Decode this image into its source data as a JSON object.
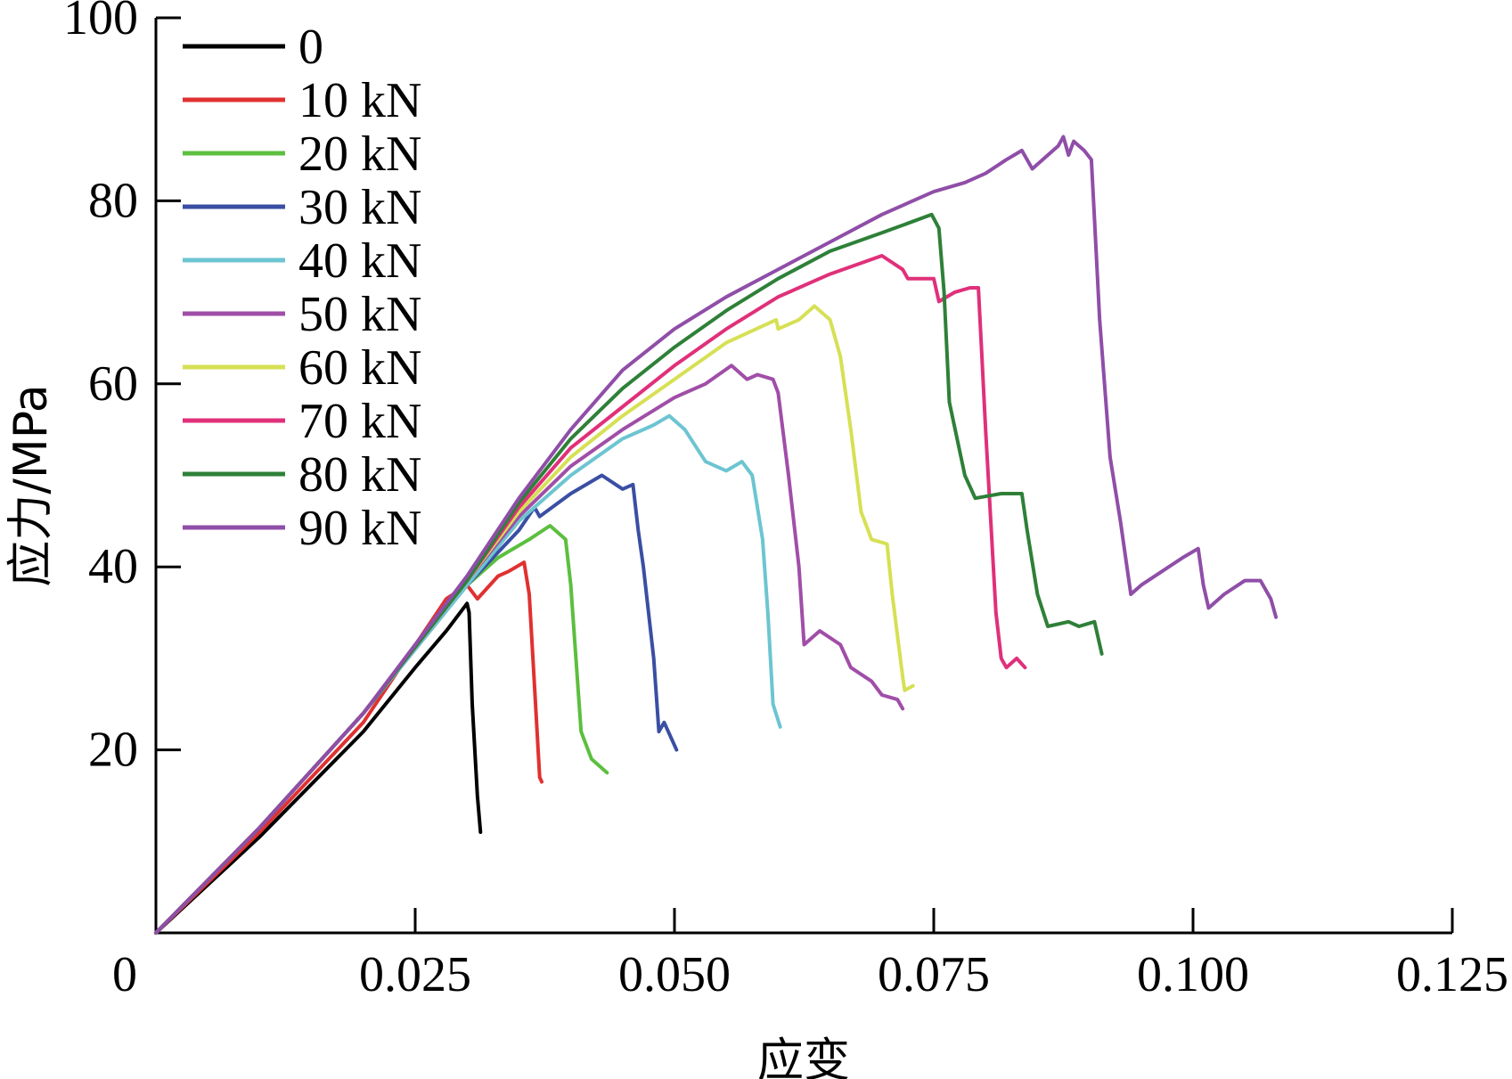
{
  "chart_data": {
    "type": "line",
    "xlabel": "应变",
    "ylabel": "应力/MPa",
    "xlim": [
      0,
      0.125
    ],
    "ylim": [
      0,
      100
    ],
    "xticks": [
      {
        "value": 0,
        "label": "0"
      },
      {
        "value": 0.025,
        "label": "0.025"
      },
      {
        "value": 0.05,
        "label": "0.050"
      },
      {
        "value": 0.075,
        "label": "0.075"
      },
      {
        "value": 0.1,
        "label": "0.100"
      },
      {
        "value": 0.125,
        "label": "0.125"
      }
    ],
    "yticks": [
      {
        "value": 20,
        "label": "20"
      },
      {
        "value": 40,
        "label": "40"
      },
      {
        "value": 60,
        "label": "60"
      },
      {
        "value": 80,
        "label": "80"
      },
      {
        "value": 100,
        "label": "100"
      }
    ],
    "legend_position": "top-left",
    "series": [
      {
        "name": "0",
        "color": "#000000",
        "points": [
          [
            0,
            0
          ],
          [
            0.01,
            10.5
          ],
          [
            0.02,
            22
          ],
          [
            0.025,
            29
          ],
          [
            0.028,
            33
          ],
          [
            0.03,
            36
          ],
          [
            0.0302,
            35
          ],
          [
            0.0305,
            25
          ],
          [
            0.031,
            15
          ],
          [
            0.0313,
            11
          ]
        ]
      },
      {
        "name": "10 kN",
        "color": "#e03131",
        "points": [
          [
            0,
            0
          ],
          [
            0.01,
            11
          ],
          [
            0.02,
            23
          ],
          [
            0.028,
            36.5
          ],
          [
            0.03,
            38
          ],
          [
            0.031,
            36.5
          ],
          [
            0.033,
            39
          ],
          [
            0.034,
            39.5
          ],
          [
            0.0355,
            40.5
          ],
          [
            0.036,
            37
          ],
          [
            0.0365,
            27
          ],
          [
            0.037,
            17
          ],
          [
            0.0372,
            16.5
          ]
        ]
      },
      {
        "name": "20 kN",
        "color": "#5cbf3f",
        "points": [
          [
            0,
            0
          ],
          [
            0.01,
            11.5
          ],
          [
            0.02,
            24
          ],
          [
            0.03,
            38
          ],
          [
            0.033,
            41
          ],
          [
            0.036,
            43
          ],
          [
            0.038,
            44.5
          ],
          [
            0.0395,
            43
          ],
          [
            0.04,
            38
          ],
          [
            0.0405,
            30
          ],
          [
            0.041,
            22
          ],
          [
            0.042,
            19
          ],
          [
            0.0435,
            17.5
          ]
        ]
      },
      {
        "name": "30 kN",
        "color": "#3a4fa3",
        "points": [
          [
            0,
            0
          ],
          [
            0.01,
            11.5
          ],
          [
            0.02,
            24
          ],
          [
            0.03,
            38
          ],
          [
            0.035,
            44
          ],
          [
            0.0365,
            46.5
          ],
          [
            0.037,
            45.5
          ],
          [
            0.04,
            48
          ],
          [
            0.043,
            50
          ],
          [
            0.045,
            48.5
          ],
          [
            0.046,
            49
          ],
          [
            0.0465,
            44
          ],
          [
            0.047,
            40
          ],
          [
            0.048,
            30
          ],
          [
            0.0485,
            22
          ],
          [
            0.049,
            23
          ],
          [
            0.0502,
            20
          ]
        ]
      },
      {
        "name": "40 kN",
        "color": "#6cc5d1",
        "points": [
          [
            0,
            0
          ],
          [
            0.01,
            11.5
          ],
          [
            0.02,
            24
          ],
          [
            0.03,
            38
          ],
          [
            0.035,
            45
          ],
          [
            0.04,
            50
          ],
          [
            0.045,
            54
          ],
          [
            0.048,
            55.5
          ],
          [
            0.0495,
            56.5
          ],
          [
            0.051,
            55
          ],
          [
            0.053,
            51.5
          ],
          [
            0.055,
            50.5
          ],
          [
            0.0565,
            51.5
          ],
          [
            0.0575,
            50
          ],
          [
            0.0585,
            43
          ],
          [
            0.059,
            35
          ],
          [
            0.0595,
            25
          ],
          [
            0.0602,
            22.5
          ]
        ]
      },
      {
        "name": "50 kN",
        "color": "#a04ea8",
        "points": [
          [
            0,
            0
          ],
          [
            0.01,
            11.5
          ],
          [
            0.02,
            24
          ],
          [
            0.03,
            38.5
          ],
          [
            0.035,
            45.5
          ],
          [
            0.04,
            51
          ],
          [
            0.045,
            55
          ],
          [
            0.05,
            58.5
          ],
          [
            0.053,
            60
          ],
          [
            0.0555,
            62
          ],
          [
            0.057,
            60.5
          ],
          [
            0.058,
            61
          ],
          [
            0.0595,
            60.5
          ],
          [
            0.06,
            59
          ],
          [
            0.061,
            50
          ],
          [
            0.062,
            40
          ],
          [
            0.0625,
            31.5
          ],
          [
            0.064,
            33
          ],
          [
            0.066,
            31.5
          ],
          [
            0.067,
            29
          ],
          [
            0.069,
            27.5
          ],
          [
            0.07,
            26
          ],
          [
            0.0715,
            25.5
          ],
          [
            0.072,
            24.5
          ]
        ]
      },
      {
        "name": "60 kN",
        "color": "#d6e054",
        "points": [
          [
            0,
            0
          ],
          [
            0.01,
            11.5
          ],
          [
            0.02,
            24
          ],
          [
            0.03,
            38.5
          ],
          [
            0.035,
            46
          ],
          [
            0.04,
            52
          ],
          [
            0.045,
            56.5
          ],
          [
            0.05,
            60.5
          ],
          [
            0.055,
            64.5
          ],
          [
            0.0598,
            67
          ],
          [
            0.06,
            66
          ],
          [
            0.062,
            67
          ],
          [
            0.0635,
            68.5
          ],
          [
            0.065,
            67
          ],
          [
            0.066,
            63
          ],
          [
            0.067,
            55
          ],
          [
            0.068,
            46
          ],
          [
            0.069,
            43
          ],
          [
            0.0705,
            42.5
          ],
          [
            0.071,
            37
          ],
          [
            0.072,
            28
          ],
          [
            0.0722,
            26.5
          ],
          [
            0.073,
            27
          ]
        ]
      },
      {
        "name": "70 kN",
        "color": "#e0307a",
        "points": [
          [
            0,
            0
          ],
          [
            0.01,
            11.5
          ],
          [
            0.02,
            24
          ],
          [
            0.03,
            38.5
          ],
          [
            0.035,
            46.5
          ],
          [
            0.04,
            53
          ],
          [
            0.045,
            57.5
          ],
          [
            0.05,
            62
          ],
          [
            0.055,
            66
          ],
          [
            0.06,
            69.5
          ],
          [
            0.065,
            72
          ],
          [
            0.07,
            74
          ],
          [
            0.072,
            72.5
          ],
          [
            0.0725,
            71.5
          ],
          [
            0.075,
            71.5
          ],
          [
            0.0755,
            69
          ],
          [
            0.077,
            70
          ],
          [
            0.0785,
            70.5
          ],
          [
            0.0793,
            70.5
          ],
          [
            0.08,
            55
          ],
          [
            0.081,
            35
          ],
          [
            0.0815,
            30
          ],
          [
            0.082,
            29
          ],
          [
            0.083,
            30
          ],
          [
            0.0838,
            29
          ]
        ]
      },
      {
        "name": "80 kN",
        "color": "#2e8038",
        "points": [
          [
            0,
            0
          ],
          [
            0.01,
            11.5
          ],
          [
            0.02,
            24
          ],
          [
            0.03,
            38.5
          ],
          [
            0.035,
            47
          ],
          [
            0.04,
            54
          ],
          [
            0.045,
            59.5
          ],
          [
            0.05,
            64
          ],
          [
            0.055,
            68
          ],
          [
            0.06,
            71.5
          ],
          [
            0.065,
            74.5
          ],
          [
            0.07,
            76.5
          ],
          [
            0.0748,
            78.5
          ],
          [
            0.0755,
            77
          ],
          [
            0.076,
            70
          ],
          [
            0.0765,
            58
          ],
          [
            0.078,
            50
          ],
          [
            0.079,
            47.5
          ],
          [
            0.0815,
            48
          ],
          [
            0.0835,
            48
          ],
          [
            0.084,
            44
          ],
          [
            0.085,
            37
          ],
          [
            0.086,
            33.5
          ],
          [
            0.088,
            34
          ],
          [
            0.089,
            33.5
          ],
          [
            0.0905,
            34
          ],
          [
            0.0912,
            30.5
          ]
        ]
      },
      {
        "name": "90 kN",
        "color": "#8f4ea8",
        "points": [
          [
            0,
            0
          ],
          [
            0.01,
            11.5
          ],
          [
            0.02,
            24
          ],
          [
            0.03,
            39
          ],
          [
            0.035,
            47.5
          ],
          [
            0.04,
            55
          ],
          [
            0.045,
            61.5
          ],
          [
            0.05,
            66
          ],
          [
            0.055,
            69.5
          ],
          [
            0.06,
            72.5
          ],
          [
            0.065,
            75.5
          ],
          [
            0.07,
            78.5
          ],
          [
            0.075,
            81
          ],
          [
            0.078,
            82
          ],
          [
            0.08,
            83
          ],
          [
            0.082,
            84.5
          ],
          [
            0.0835,
            85.5
          ],
          [
            0.0845,
            83.5
          ],
          [
            0.087,
            86
          ],
          [
            0.0875,
            87
          ],
          [
            0.088,
            85
          ],
          [
            0.0885,
            86.5
          ],
          [
            0.0895,
            85.5
          ],
          [
            0.0902,
            84.5
          ],
          [
            0.0905,
            78
          ],
          [
            0.091,
            67
          ],
          [
            0.092,
            52
          ],
          [
            0.093,
            45
          ],
          [
            0.094,
            37
          ],
          [
            0.095,
            38
          ],
          [
            0.097,
            39.5
          ],
          [
            0.099,
            41
          ],
          [
            0.1005,
            42
          ],
          [
            0.101,
            38
          ],
          [
            0.1015,
            35.5
          ],
          [
            0.103,
            37
          ],
          [
            0.105,
            38.5
          ],
          [
            0.1065,
            38.5
          ],
          [
            0.1075,
            36.5
          ],
          [
            0.108,
            34.5
          ]
        ]
      }
    ]
  }
}
